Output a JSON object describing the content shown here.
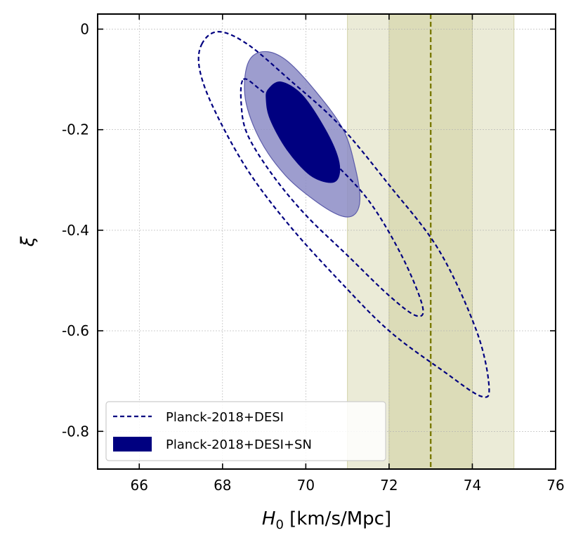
{
  "chart_data": {
    "type": "contour",
    "title": "",
    "xlabel_symbol": "H",
    "xlabel_subscript": "0",
    "xlabel_unit": " [km/s/Mpc]",
    "ylabel": "ξ",
    "xlim": [
      65,
      76
    ],
    "ylim": [
      -0.875,
      0.03
    ],
    "x_ticks": [
      66,
      68,
      70,
      72,
      74,
      76
    ],
    "x_tick_labels": [
      "66",
      "68",
      "70",
      "72",
      "74",
      "76"
    ],
    "y_ticks": [
      0,
      -0.2,
      -0.4,
      -0.6,
      -0.8
    ],
    "y_tick_labels": [
      "0",
      "-0.2",
      "-0.4",
      "-0.6",
      "-0.8"
    ],
    "grid": true,
    "colors": {
      "series": "#000080",
      "filled_outer": "#8c8cc6",
      "band_outer": "#ebebd7",
      "band_inner": "#dcdcb8",
      "band_line": "#7a7a00"
    },
    "reference_band": {
      "center": 73.0,
      "inner_range": [
        72.0,
        74.0
      ],
      "outer_range": [
        71.0,
        75.0
      ]
    },
    "series": [
      {
        "name": "Planck-2018+DESI",
        "style": "dashed",
        "contours": [
          {
            "level": "1sigma",
            "points": [
              [
                68.5,
                -0.1
              ],
              [
                68.9,
                -0.12
              ],
              [
                69.6,
                -0.17
              ],
              [
                70.5,
                -0.25
              ],
              [
                71.5,
                -0.34
              ],
              [
                72.3,
                -0.45
              ],
              [
                72.8,
                -0.55
              ],
              [
                72.65,
                -0.57
              ],
              [
                72.0,
                -0.53
              ],
              [
                71.0,
                -0.45
              ],
              [
                70.0,
                -0.37
              ],
              [
                69.2,
                -0.29
              ],
              [
                68.6,
                -0.21
              ],
              [
                68.45,
                -0.15
              ]
            ]
          },
          {
            "level": "2sigma",
            "points": [
              [
                67.5,
                -0.03
              ],
              [
                67.9,
                -0.005
              ],
              [
                68.6,
                -0.03
              ],
              [
                69.6,
                -0.1
              ],
              [
                70.8,
                -0.19
              ],
              [
                72.0,
                -0.31
              ],
              [
                73.2,
                -0.44
              ],
              [
                74.1,
                -0.6
              ],
              [
                74.4,
                -0.71
              ],
              [
                74.2,
                -0.73
              ],
              [
                73.3,
                -0.68
              ],
              [
                72.0,
                -0.6
              ],
              [
                70.8,
                -0.5
              ],
              [
                69.6,
                -0.39
              ],
              [
                68.6,
                -0.28
              ],
              [
                67.8,
                -0.16
              ],
              [
                67.45,
                -0.08
              ]
            ]
          }
        ]
      },
      {
        "name": "Planck-2018+DESI+SN",
        "style": "filled",
        "contours": [
          {
            "level": "2sigma",
            "points": [
              [
                68.6,
                -0.07
              ],
              [
                68.95,
                -0.045
              ],
              [
                69.5,
                -0.06
              ],
              [
                70.2,
                -0.12
              ],
              [
                70.9,
                -0.2
              ],
              [
                71.2,
                -0.28
              ],
              [
                71.3,
                -0.34
              ],
              [
                71.15,
                -0.37
              ],
              [
                70.8,
                -0.37
              ],
              [
                70.2,
                -0.34
              ],
              [
                69.5,
                -0.29
              ],
              [
                68.9,
                -0.22
              ],
              [
                68.55,
                -0.14
              ]
            ]
          },
          {
            "level": "1sigma",
            "points": [
              [
                69.1,
                -0.12
              ],
              [
                69.4,
                -0.105
              ],
              [
                69.9,
                -0.13
              ],
              [
                70.4,
                -0.19
              ],
              [
                70.75,
                -0.25
              ],
              [
                70.8,
                -0.29
              ],
              [
                70.6,
                -0.305
              ],
              [
                70.1,
                -0.29
              ],
              [
                69.55,
                -0.24
              ],
              [
                69.15,
                -0.18
              ],
              [
                69.05,
                -0.14
              ]
            ]
          }
        ]
      }
    ],
    "legend": {
      "position": "lower-left",
      "entries": [
        "Planck-2018+DESI",
        "Planck-2018+DESI+SN"
      ]
    }
  }
}
